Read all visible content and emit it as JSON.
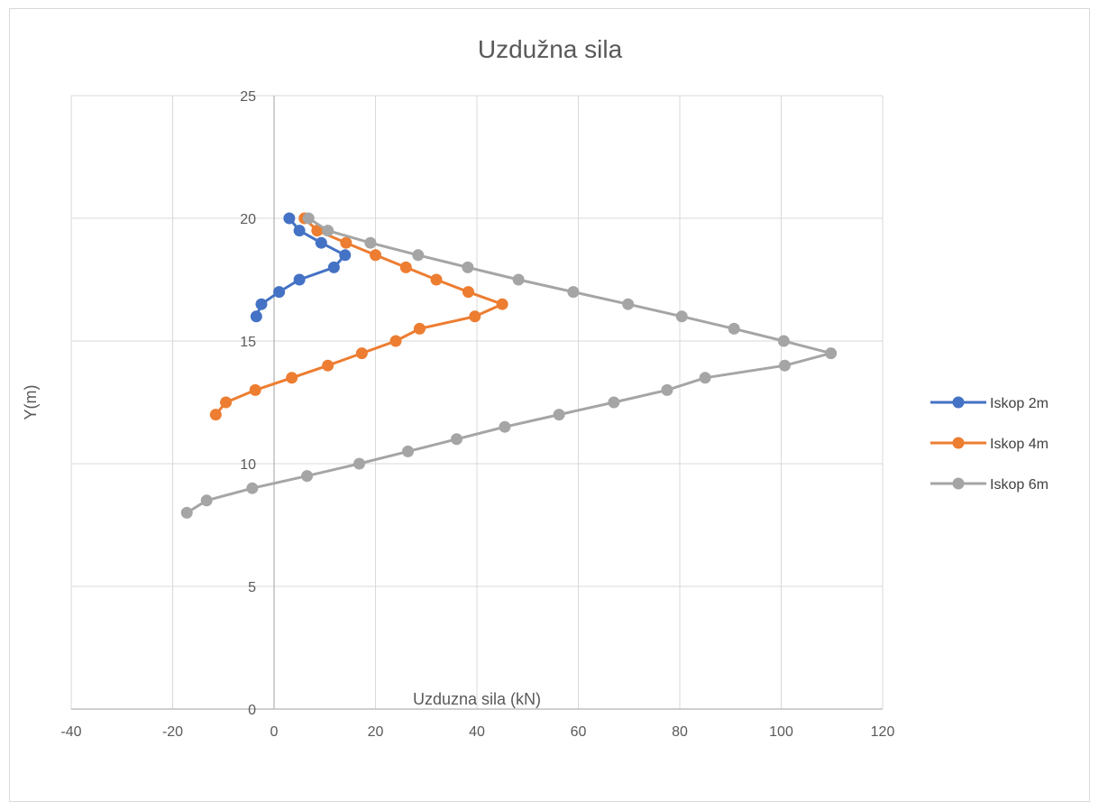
{
  "chart_data": {
    "type": "scatter",
    "title": "Uzdužna sila",
    "xlabel": "Uzduzna sila (kN)",
    "ylabel": "Y(m)",
    "xlim": [
      -40,
      120
    ],
    "ylim": [
      0,
      25
    ],
    "xticks": [
      -40,
      -20,
      0,
      20,
      40,
      60,
      80,
      100,
      120
    ],
    "yticks": [
      0,
      5,
      10,
      15,
      20,
      25
    ],
    "grid": true,
    "legend": "right",
    "series": [
      {
        "name": "Iskop 2m",
        "color": "#4472C4",
        "points": [
          [
            3,
            20
          ],
          [
            5,
            19.5
          ],
          [
            9.3,
            19
          ],
          [
            14,
            18.5
          ],
          [
            11.8,
            18
          ],
          [
            5,
            17.5
          ],
          [
            1,
            17
          ],
          [
            -2.5,
            16.5
          ],
          [
            -3.5,
            16
          ]
        ]
      },
      {
        "name": "Iskop 4m",
        "color": "#ED7D31",
        "points": [
          [
            6,
            20
          ],
          [
            8.5,
            19.5
          ],
          [
            14.2,
            19
          ],
          [
            20,
            18.5
          ],
          [
            26,
            18
          ],
          [
            32,
            17.5
          ],
          [
            38.3,
            17
          ],
          [
            45,
            16.5
          ],
          [
            39.6,
            16
          ],
          [
            28.7,
            15.5
          ],
          [
            24,
            15
          ],
          [
            17.3,
            14.5
          ],
          [
            10.6,
            14
          ],
          [
            3.5,
            13.5
          ],
          [
            -3.7,
            13
          ],
          [
            -9.5,
            12.5
          ],
          [
            -11.5,
            12
          ]
        ]
      },
      {
        "name": "Iskop 6m",
        "color": "#A5A5A5",
        "points": [
          [
            6.8,
            20
          ],
          [
            10.6,
            19.5
          ],
          [
            19,
            19
          ],
          [
            28.4,
            18.5
          ],
          [
            38.2,
            18
          ],
          [
            48.2,
            17.5
          ],
          [
            59,
            17
          ],
          [
            69.8,
            16.5
          ],
          [
            80.4,
            16
          ],
          [
            90.7,
            15.5
          ],
          [
            100.5,
            15
          ],
          [
            109.8,
            14.5
          ],
          [
            100.7,
            14
          ],
          [
            85,
            13.5
          ],
          [
            77.5,
            13
          ],
          [
            67,
            12.5
          ],
          [
            56.2,
            12
          ],
          [
            45.5,
            11.5
          ],
          [
            36,
            11
          ],
          [
            26.4,
            10.5
          ],
          [
            16.8,
            10
          ],
          [
            6.5,
            9.5
          ],
          [
            -4.3,
            9
          ],
          [
            -13.3,
            8.5
          ],
          [
            -17.2,
            8
          ]
        ]
      }
    ]
  }
}
